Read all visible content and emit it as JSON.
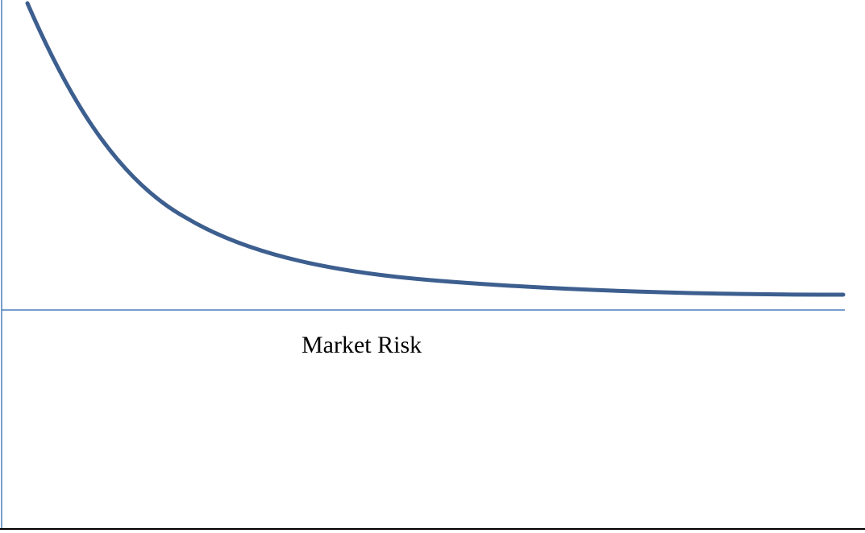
{
  "diagram": {
    "label": "Market Risk",
    "colors": {
      "curve": "#3d5f8f",
      "axis": "#4a7ebb",
      "base_line": "#000000",
      "text": "#000000"
    }
  }
}
